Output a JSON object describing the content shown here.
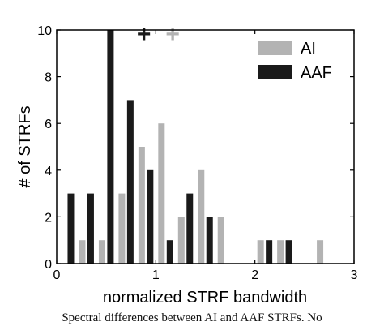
{
  "chart_data": {
    "type": "bar",
    "xlabel": "normalized STRF bandwidth",
    "ylabel": "# of STRFs",
    "xlim": [
      0,
      3
    ],
    "ylim": [
      0,
      10
    ],
    "xticks": [
      0,
      1,
      2,
      3
    ],
    "yticks": [
      0,
      2,
      4,
      6,
      8,
      10
    ],
    "grid": false,
    "legend_position": "top-right",
    "bin_centers": [
      0.2,
      0.4,
      0.6,
      0.8,
      1.0,
      1.2,
      1.4,
      1.6,
      1.8,
      2.0,
      2.2,
      2.4,
      2.6
    ],
    "series": [
      {
        "name": "AI",
        "color": "#b3b3b3",
        "values": [
          1,
          1,
          3,
          5,
          6,
          2,
          4,
          2,
          0,
          1,
          1,
          0,
          1
        ],
        "median_x": 1.17
      },
      {
        "name": "AAF",
        "color": "#1a1a1a",
        "values": [
          3,
          3,
          10,
          7,
          4,
          1,
          3,
          2,
          0,
          0,
          1,
          1,
          0
        ],
        "median_x": 0.88
      }
    ],
    "median_marker": "+"
  },
  "caption": "Spectral differences between AI and AAF STRFs. No"
}
